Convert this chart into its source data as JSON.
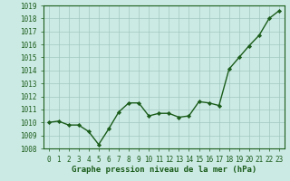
{
  "x": [
    0,
    1,
    2,
    3,
    4,
    5,
    6,
    7,
    8,
    9,
    10,
    11,
    12,
    13,
    14,
    15,
    16,
    17,
    18,
    19,
    20,
    21,
    22,
    23
  ],
  "y": [
    1010.0,
    1010.1,
    1009.8,
    1009.8,
    1009.3,
    1008.3,
    1009.5,
    1010.8,
    1011.5,
    1011.5,
    1010.5,
    1010.7,
    1010.7,
    1010.4,
    1010.5,
    1011.6,
    1011.5,
    1011.3,
    1014.1,
    1015.0,
    1015.9,
    1016.7,
    1018.0,
    1018.6
  ],
  "xlim": [
    -0.5,
    23.5
  ],
  "ylim": [
    1008,
    1019
  ],
  "yticks": [
    1008,
    1009,
    1010,
    1011,
    1012,
    1013,
    1014,
    1015,
    1016,
    1017,
    1018,
    1019
  ],
  "xticks": [
    0,
    1,
    2,
    3,
    4,
    5,
    6,
    7,
    8,
    9,
    10,
    11,
    12,
    13,
    14,
    15,
    16,
    17,
    18,
    19,
    20,
    21,
    22,
    23
  ],
  "line_color": "#1a5c1a",
  "marker_color": "#1a5c1a",
  "bg_color": "#cceae4",
  "grid_color": "#a0c8c0",
  "xlabel": "Graphe pression niveau de la mer (hPa)",
  "xlabel_color": "#1a5c1a",
  "tick_color": "#1a5c1a",
  "border_color": "#1a5c1a",
  "marker": "D",
  "marker_size": 2.2,
  "line_width": 1.0,
  "xlabel_fontsize": 6.5,
  "tick_fontsize": 5.5
}
